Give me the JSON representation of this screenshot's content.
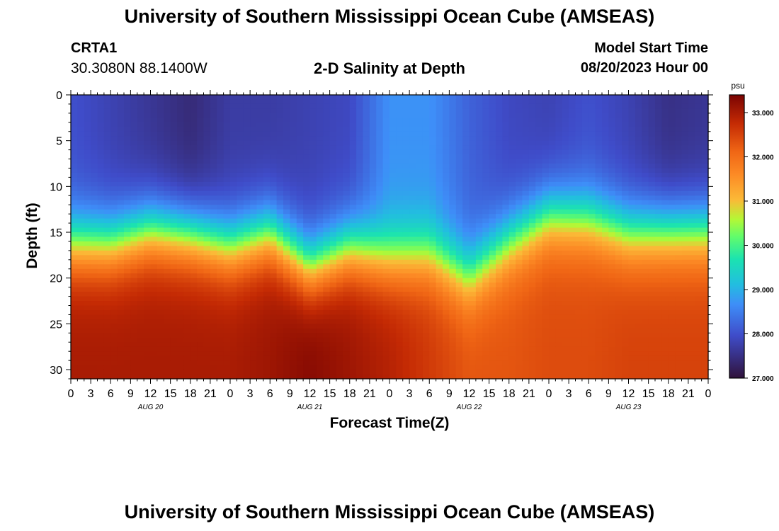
{
  "header": {
    "title": "University of Southern Mississippi Ocean Cube (AMSEAS)",
    "station": "CRTA1",
    "coordinates": "30.3080N  88.1400W",
    "plot_title": "2-D Salinity at Depth",
    "model_start_label": "Model Start Time",
    "model_start_value": "08/20/2023 Hour 00"
  },
  "footer": {
    "title": "University of Southern Mississippi Ocean Cube (AMSEAS)"
  },
  "chart_data": {
    "type": "heatmap",
    "title": "2-D Salinity at Depth",
    "xlabel": "Forecast Time(Z)",
    "ylabel": "Depth (ft)",
    "x_hours_range": [
      0,
      96
    ],
    "ylim": [
      0,
      31
    ],
    "y_ticks": [
      0,
      5,
      10,
      15,
      20,
      25,
      30
    ],
    "x_tick_labels": [
      "0",
      "3",
      "6",
      "9",
      "12",
      "15",
      "18",
      "21",
      "0",
      "3",
      "6",
      "9",
      "12",
      "15",
      "18",
      "21",
      "0",
      "3",
      "6",
      "9",
      "12",
      "15",
      "18",
      "21",
      "0",
      "3",
      "6",
      "9",
      "12",
      "15",
      "18",
      "21",
      "0"
    ],
    "day_labels": [
      {
        "label": "AUG 20",
        "hour": 12
      },
      {
        "label": "AUG 21",
        "hour": 36
      },
      {
        "label": "AUG 22",
        "hour": 60
      },
      {
        "label": "AUG 23",
        "hour": 84
      }
    ],
    "colorbar": {
      "unit": "psu",
      "range": [
        27.0,
        33.4
      ],
      "tick_values": [
        27,
        28,
        29,
        30,
        31,
        32,
        33
      ],
      "tick_labels": [
        "27.000",
        "28.000",
        "29.000",
        "30.000",
        "31.000",
        "32.000",
        "33.000"
      ]
    },
    "profile_hours": [
      0,
      6,
      12,
      18,
      24,
      30,
      36,
      42,
      48,
      54,
      60,
      66,
      72,
      78,
      84,
      90,
      96
    ],
    "surface_salinity": [
      28.0,
      27.8,
      27.6,
      27.4,
      27.7,
      27.7,
      27.8,
      27.9,
      28.7,
      28.7,
      28.2,
      27.9,
      27.8,
      28.0,
      27.8,
      27.5,
      27.6
    ],
    "bottom_salinity": [
      33.0,
      33.0,
      33.0,
      33.0,
      33.0,
      33.1,
      33.3,
      33.1,
      32.9,
      32.6,
      32.3,
      32.3,
      32.4,
      32.4,
      32.5,
      32.5,
      32.5
    ],
    "halocline_depth_ft": [
      16.2,
      16.2,
      14.8,
      15.3,
      16.5,
      15.2,
      18.8,
      16.8,
      17.8,
      17.5,
      19.8,
      16.0,
      13.2,
      13.5,
      15.0,
      14.8,
      14.8
    ]
  }
}
